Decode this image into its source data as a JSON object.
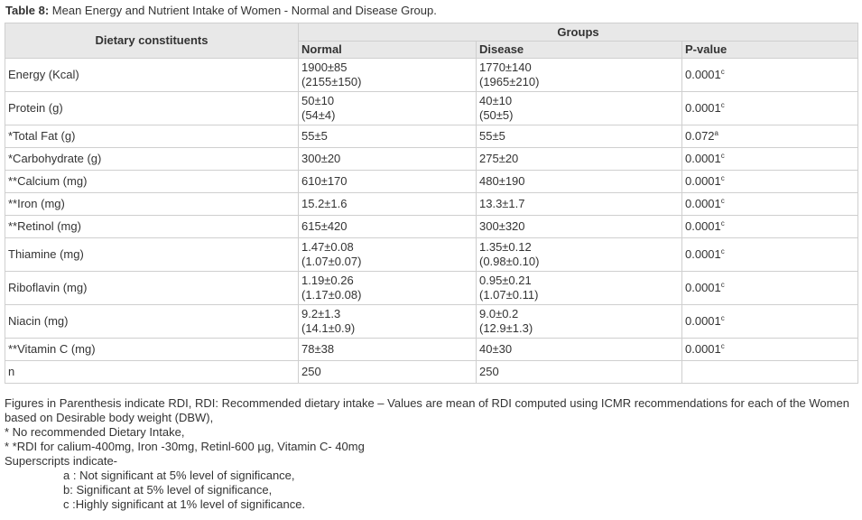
{
  "caption": {
    "label": "Table 8:",
    "text": " Mean Energy and Nutrient Intake of Women - Normal and Disease Group."
  },
  "headers": {
    "dietary": "Dietary constituents",
    "groups": "Groups",
    "normal": "Normal",
    "disease": "Disease",
    "pvalue": "P-value"
  },
  "rows": [
    {
      "name": "Energy (Kcal)",
      "normal": [
        "1900±85",
        "(2155±150)"
      ],
      "disease": [
        "1770±140",
        "(1965±210)"
      ],
      "p": "0.0001",
      "sup": "c"
    },
    {
      "name": "Protein (g)",
      "normal": [
        "50±10",
        "(54±4)"
      ],
      "disease": [
        "40±10",
        "(50±5)"
      ],
      "p": "0.0001",
      "sup": "c"
    },
    {
      "name": "*Total Fat  (g)",
      "normal": [
        "55±5"
      ],
      "disease": [
        "55±5"
      ],
      "p": "0.072",
      "sup": "a"
    },
    {
      "name": "*Carbohydrate (g)",
      "normal": [
        "300±20"
      ],
      "disease": [
        "275±20"
      ],
      "p": "0.0001",
      "sup": "c"
    },
    {
      "name": "**Calcium (mg)",
      "normal": [
        "610±170"
      ],
      "disease": [
        "480±190"
      ],
      "p": "0.0001",
      "sup": "c"
    },
    {
      "name": "**Iron (mg)",
      "normal": [
        "15.2±1.6"
      ],
      "disease": [
        "13.3±1.7"
      ],
      "p": "0.0001",
      "sup": "c"
    },
    {
      "name": "**Retinol (mg)",
      "normal": [
        "615±420"
      ],
      "disease": [
        "300±320"
      ],
      "p": "0.0001",
      "sup": "c"
    },
    {
      "name": "Thiamine (mg)",
      "normal": [
        "1.47±0.08",
        "(1.07±0.07)"
      ],
      "disease": [
        "1.35±0.12",
        "(0.98±0.10)"
      ],
      "p": "0.0001",
      "sup": "c"
    },
    {
      "name": "Riboflavin (mg)",
      "normal": [
        "1.19±0.26",
        "(1.17±0.08)"
      ],
      "disease": [
        "0.95±0.21",
        "(1.07±0.11)"
      ],
      "p": "0.0001",
      "sup": "c"
    },
    {
      "name": "Niacin (mg)",
      "normal": [
        "9.2±1.3",
        "(14.1±0.9)"
      ],
      "disease": [
        "9.0±0.2",
        "(12.9±1.3)"
      ],
      "p": "0.0001",
      "sup": "c"
    },
    {
      "name": "**Vitamin C (mg)",
      "normal": [
        "78±38"
      ],
      "disease": [
        "40±30"
      ],
      "p": "0.0001",
      "sup": "c"
    },
    {
      "name": "n",
      "normal": [
        "250"
      ],
      "disease": [
        "250"
      ],
      "p": "",
      "sup": ""
    }
  ],
  "notes": {
    "line1": "Figures in Parenthesis indicate RDI, RDI: Recommended dietary intake – Values are mean of RDI computed using ICMR recommendations for each of the Women based on Desirable body weight (DBW),",
    "line2": "* No recommended Dietary Intake,",
    "line3": "* *RDI for calium-400mg, Iron -30mg,  Retinl-600 µg, Vitamin C- 40mg",
    "line4": "Superscripts indicate-",
    "sig_a": "a : Not significant at 5% level of significance,",
    "sig_b": "b: Significant at 5% level of significance,",
    "sig_c": "c :Highly significant at 1% level of significance."
  }
}
